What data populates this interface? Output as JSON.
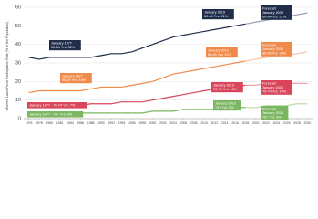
{
  "chart_data": {
    "type": "line",
    "y_label": "Women Labor Force Participation Rate (% of the Population)",
    "x": [
      1976,
      1978,
      1980,
      1982,
      1984,
      1986,
      1988,
      1990,
      1992,
      1994,
      1996,
      1998,
      2000,
      2002,
      2004,
      2006,
      2008,
      2010,
      2012,
      2014,
      2016,
      2018,
      2020,
      2022,
      2024,
      2026,
      2028,
      2030
    ],
    "xlim": [
      1975,
      2031
    ],
    "xticks": [
      1976,
      1978,
      1980,
      1982,
      1984,
      1986,
      1988,
      1990,
      1992,
      1994,
      1996,
      1998,
      2000,
      2002,
      2004,
      2006,
      2008,
      2010,
      2012,
      2014,
      2016,
      2018,
      2020,
      2022,
      2024,
      2026,
      2028,
      2030
    ],
    "ylim": [
      0,
      60
    ],
    "yticks": [
      0,
      10,
      20,
      30,
      40,
      50,
      60
    ],
    "grid": true,
    "series": [
      {
        "color": "#1f2d4a",
        "values": [
          33,
          32,
          33,
          33,
          33,
          33,
          33,
          34,
          35,
          35,
          36,
          38,
          40,
          42,
          44,
          45,
          46,
          47,
          48,
          49,
          50,
          51,
          null,
          null,
          null,
          null,
          null,
          null
        ]
      },
      {
        "color": "#f08a4b",
        "values": [
          14,
          15,
          15,
          15,
          15,
          15,
          16,
          17,
          17,
          17,
          18,
          19,
          20,
          22,
          24,
          25,
          26,
          27,
          28,
          29,
          30,
          31,
          null,
          null,
          null,
          null,
          null,
          null
        ]
      },
      {
        "color": "#d9455a",
        "values": [
          8,
          8,
          7,
          7,
          7,
          7,
          8,
          8,
          8,
          9,
          9,
          9,
          10,
          11,
          12,
          13,
          14,
          15,
          16,
          17,
          17,
          18,
          null,
          null,
          null,
          null,
          null,
          null
        ]
      },
      {
        "color": "#7bb661",
        "values": [
          3,
          3,
          3,
          3,
          3,
          3,
          3,
          3,
          3,
          3,
          3,
          3,
          4,
          4,
          4,
          5,
          5,
          5,
          5,
          6,
          6,
          6,
          null,
          null,
          null,
          null,
          null,
          null
        ]
      },
      {
        "color": "#9aa3b5",
        "values": [
          null,
          null,
          null,
          null,
          null,
          null,
          null,
          null,
          null,
          null,
          null,
          null,
          null,
          null,
          null,
          null,
          null,
          null,
          null,
          null,
          null,
          51,
          52,
          53,
          54,
          55,
          56,
          57
        ]
      },
      {
        "color": "#f7c3a3",
        "values": [
          null,
          null,
          null,
          null,
          null,
          null,
          null,
          null,
          null,
          null,
          null,
          null,
          null,
          null,
          null,
          null,
          null,
          null,
          null,
          null,
          null,
          31,
          32,
          33,
          34,
          34,
          35,
          36
        ]
      },
      {
        "color": "#eea1ab",
        "values": [
          null,
          null,
          null,
          null,
          null,
          null,
          null,
          null,
          null,
          null,
          null,
          null,
          null,
          null,
          null,
          null,
          null,
          null,
          null,
          null,
          null,
          18,
          18,
          19,
          19,
          19,
          19,
          19
        ]
      },
      {
        "color": "#bddbad",
        "values": [
          null,
          null,
          null,
          null,
          null,
          null,
          null,
          null,
          null,
          null,
          null,
          null,
          null,
          null,
          null,
          null,
          null,
          null,
          null,
          null,
          null,
          6,
          6,
          7,
          7,
          7,
          8,
          8
        ]
      }
    ],
    "annotations": [
      {
        "color": "#1f2d4a",
        "lines": [
          "January 1977",
          "60-64 Yrs: 32%"
        ]
      },
      {
        "color": "#1f2d4a",
        "lines": [
          "January 2019",
          "60-64 Yrs: 51%"
        ]
      },
      {
        "color": "#1f2d4a",
        "lines": [
          "Forecast",
          "January 2030",
          "60-64 Yrs: 57%"
        ]
      },
      {
        "color": "#f08a4b",
        "lines": [
          "January 1977",
          "65-69 Yrs: 15%"
        ]
      },
      {
        "color": "#f08a4b",
        "lines": [
          "January 2019",
          "65-69 Yrs: 31%"
        ]
      },
      {
        "color": "#f08a4b",
        "lines": [
          "Forecast",
          "January 2030",
          "65-69 Yrs: 36%"
        ]
      },
      {
        "color": "#d9455a",
        "lines": [
          "January 1977 - 70-74 Yrs: 7%"
        ]
      },
      {
        "color": "#d9455a",
        "lines": [
          "January 2019",
          "70-74 Yrs: 18%"
        ]
      },
      {
        "color": "#d9455a",
        "lines": [
          "Forecast",
          "January 2030",
          "70-74 Yrs: 19%"
        ]
      },
      {
        "color": "#7bb661",
        "lines": [
          "January 1977 - 75+ Yrs: 3%"
        ]
      },
      {
        "color": "#7bb661",
        "lines": [
          "January 2019",
          "75+ Yrs: 6%"
        ]
      },
      {
        "color": "#7bb661",
        "lines": [
          "Forecast",
          "January 2030",
          "75+ Yrs: 8%"
        ]
      }
    ]
  }
}
